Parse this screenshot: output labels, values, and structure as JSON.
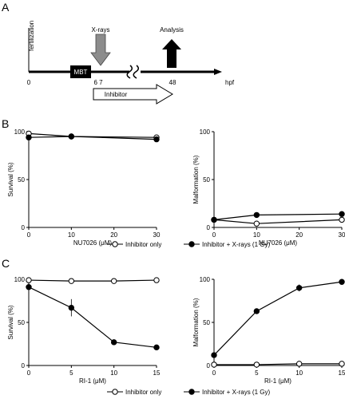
{
  "panels": {
    "A": "A",
    "B": "B",
    "C": "C"
  },
  "timeline": {
    "fertilization": "fertilization",
    "xrays": "X-rays",
    "analysis": "Analysis",
    "mbt": "MBT",
    "ticks": [
      "0",
      "6 7",
      "48"
    ],
    "unit": "hpf",
    "inhibitor": "Inhibitor"
  },
  "legends": {
    "B": [
      "Inhibitor only",
      "Inhibitor + X-rays (1 Gy)"
    ],
    "C": [
      "Inhibitor only",
      "Inhibitor + X-rays (1 Gy)"
    ]
  },
  "chart_data": [
    {
      "id": "B-survival",
      "type": "line",
      "xlabel": "NU7026 (μM)",
      "ylabel": "Survival (%)",
      "x": [
        0,
        10,
        30
      ],
      "xlim": [
        0,
        30
      ],
      "xticks": [
        0,
        10,
        20,
        30
      ],
      "ylim": [
        0,
        100
      ],
      "yticks": [
        0,
        50,
        100
      ],
      "series": [
        {
          "name": "Inhibitor only",
          "marker": "open",
          "values": [
            98,
            95,
            94
          ],
          "err": [
            0,
            0,
            0
          ]
        },
        {
          "name": "Inhibitor + X-rays (1 Gy)",
          "marker": "filled",
          "values": [
            94,
            95,
            92
          ],
          "err": [
            0,
            0,
            0
          ]
        }
      ]
    },
    {
      "id": "B-malformation",
      "type": "line",
      "xlabel": "NU7026 (μM)",
      "ylabel": "Malformation (%)",
      "x": [
        0,
        10,
        30
      ],
      "xlim": [
        0,
        30
      ],
      "xticks": [
        0,
        10,
        20,
        30
      ],
      "ylim": [
        0,
        100
      ],
      "yticks": [
        0,
        50,
        100
      ],
      "series": [
        {
          "name": "Inhibitor only",
          "marker": "open",
          "values": [
            8,
            4,
            8
          ],
          "err": [
            0,
            0,
            0
          ]
        },
        {
          "name": "Inhibitor + X-rays (1 Gy)",
          "marker": "filled",
          "values": [
            8,
            13,
            14
          ],
          "err": [
            0,
            0,
            0
          ]
        }
      ]
    },
    {
      "id": "C-survival",
      "type": "line",
      "xlabel": "RI-1 (μM)",
      "ylabel": "Survival (%)",
      "x": [
        0,
        5,
        10,
        15
      ],
      "xlim": [
        0,
        15
      ],
      "xticks": [
        0,
        5,
        10,
        15
      ],
      "ylim": [
        0,
        100
      ],
      "yticks": [
        0,
        50,
        100
      ],
      "series": [
        {
          "name": "Inhibitor only",
          "marker": "open",
          "values": [
            99,
            98,
            98,
            99
          ],
          "err": [
            0,
            0,
            0,
            0
          ]
        },
        {
          "name": "Inhibitor + X-rays (1 Gy)",
          "marker": "filled",
          "values": [
            91,
            67,
            27,
            21
          ],
          "err": [
            0,
            10,
            3,
            3
          ]
        }
      ]
    },
    {
      "id": "C-malformation",
      "type": "line",
      "xlabel": "RI-1 (μM)",
      "ylabel": "Malformation (%)",
      "x": [
        0,
        5,
        10,
        15
      ],
      "xlim": [
        0,
        15
      ],
      "xticks": [
        0,
        5,
        10,
        15
      ],
      "ylim": [
        0,
        100
      ],
      "yticks": [
        0,
        50,
        100
      ],
      "series": [
        {
          "name": "Inhibitor only",
          "marker": "open",
          "values": [
            1,
            1,
            2,
            2
          ],
          "err": [
            0,
            0,
            0,
            0
          ]
        },
        {
          "name": "Inhibitor + X-rays (1 Gy)",
          "marker": "filled",
          "values": [
            12,
            63,
            90,
            97
          ],
          "err": [
            0,
            3,
            4,
            2
          ]
        }
      ]
    }
  ]
}
